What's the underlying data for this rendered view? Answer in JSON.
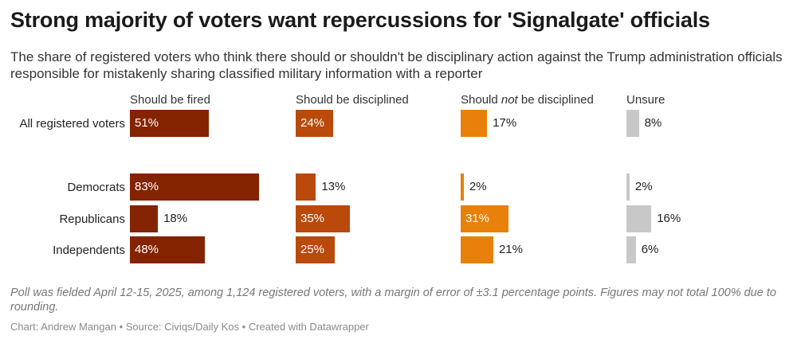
{
  "title": "Strong majority of voters want repercussions for 'Signalgate' officials",
  "subtitle": "The share of registered voters who think there should or shouldn't be disciplinary action against the Trump administration officials responsible for mistakenly sharing classified military information with a reporter",
  "note": "Poll was fielded April 12-15, 2025, among 1,124 registered voters, with a margin of error of ±3.1 percentage points. Figures may not total 100% due to rounding.",
  "credit": "Chart: Andrew Mangan • Source: Civiqs/Daily Kos • Created with Datawrapper",
  "chart_data": {
    "type": "bar",
    "orientation": "horizontal",
    "layout": "split-bars",
    "title": "Strong majority of voters want repercussions for 'Signalgate' officials",
    "categories": [
      "All registered voters",
      "Democrats",
      "Republicans",
      "Independents"
    ],
    "series": [
      {
        "name": "Should be fired",
        "header_pre": "Should be fired",
        "header_em": "",
        "header_post": "",
        "color": "#832300",
        "values": [
          51,
          83,
          18,
          48
        ],
        "labels": [
          "51%",
          "83%",
          "18%",
          "48%"
        ]
      },
      {
        "name": "Should be disciplined",
        "header_pre": "Should be disciplined",
        "header_em": "",
        "header_post": "",
        "color": "#b94a0c",
        "values": [
          24,
          13,
          35,
          25
        ],
        "labels": [
          "24%",
          "13%",
          "35%",
          "25%"
        ]
      },
      {
        "name": "Should not be disciplined",
        "header_pre": "Should ",
        "header_em": "not",
        "header_post": " be disciplined",
        "color": "#e8800a",
        "values": [
          17,
          2,
          31,
          21
        ],
        "labels": [
          "17%",
          "2%",
          "31%",
          "21%"
        ]
      },
      {
        "name": "Unsure",
        "header_pre": "Unsure",
        "header_em": "",
        "header_post": "",
        "color": "#c8c8c8",
        "values": [
          8,
          2,
          16,
          6
        ],
        "labels": [
          "8%",
          "2%",
          "16%",
          "6%"
        ]
      }
    ],
    "unit": "%"
  }
}
